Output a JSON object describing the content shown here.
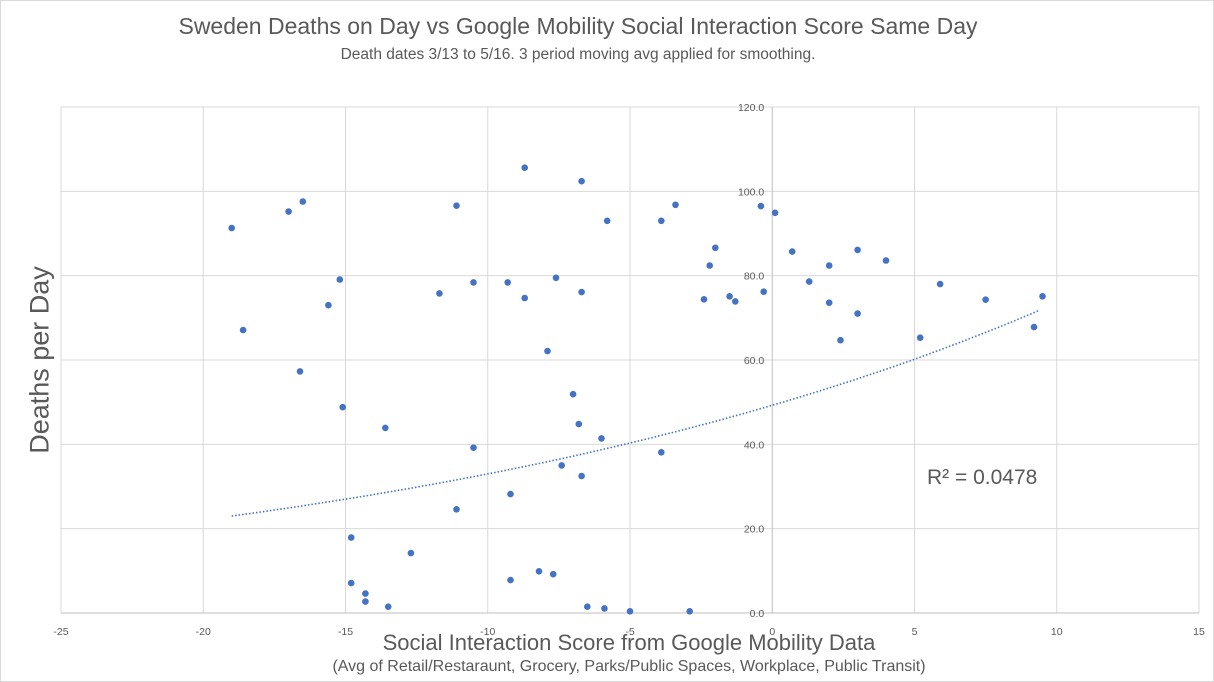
{
  "chart_data": {
    "type": "scatter",
    "title": "Sweden Deaths on Day vs Google Mobility Social Interaction Score Same Day",
    "subtitle": "Death dates 3/13 to 5/16.  3 period moving avg applied for smoothing.",
    "xlabel": "Social Interaction Score from Google Mobility Data",
    "xlabel_note": "(Avg of Retail/Restaraunt, Grocery, Parks/Public Spaces, Workplace, Public Transit)",
    "ylabel": "Deaths per Day",
    "xlim": [
      -25,
      15
    ],
    "ylim": [
      0,
      120
    ],
    "x_ticks": [
      "-25",
      "-20",
      "-15",
      "-10",
      "-5",
      "0",
      "5",
      "10",
      "15"
    ],
    "y_ticks": [
      "0.0",
      "20.0",
      "40.0",
      "60.0",
      "80.0",
      "100.0",
      "120.0"
    ],
    "grid": true,
    "marker_color": "#4472c4",
    "trendline": {
      "type": "exponential",
      "label": "R² = 0.0478",
      "x_range": [
        -19,
        9.4
      ],
      "start_value": 23.0,
      "end_value": 71.8
    },
    "points": [
      {
        "x": -19.0,
        "y": 91.3
      },
      {
        "x": -18.6,
        "y": 67.1
      },
      {
        "x": -17.0,
        "y": 95.2
      },
      {
        "x": -16.5,
        "y": 97.6
      },
      {
        "x": -16.6,
        "y": 57.3
      },
      {
        "x": -15.6,
        "y": 73.0
      },
      {
        "x": -15.2,
        "y": 79.1
      },
      {
        "x": -15.1,
        "y": 48.8
      },
      {
        "x": -14.8,
        "y": 17.9
      },
      {
        "x": -14.8,
        "y": 7.1
      },
      {
        "x": -14.3,
        "y": 4.6
      },
      {
        "x": -14.3,
        "y": 2.7
      },
      {
        "x": -13.6,
        "y": 43.9
      },
      {
        "x": -13.5,
        "y": 1.5
      },
      {
        "x": -12.7,
        "y": 14.2
      },
      {
        "x": -11.7,
        "y": 75.8
      },
      {
        "x": -11.1,
        "y": 96.6
      },
      {
        "x": -11.1,
        "y": 24.6
      },
      {
        "x": -10.5,
        "y": 78.4
      },
      {
        "x": -10.5,
        "y": 39.2
      },
      {
        "x": -9.3,
        "y": 78.4
      },
      {
        "x": -9.2,
        "y": 28.2
      },
      {
        "x": -9.2,
        "y": 7.8
      },
      {
        "x": -8.7,
        "y": 105.6
      },
      {
        "x": -8.7,
        "y": 74.7
      },
      {
        "x": -8.2,
        "y": 9.9
      },
      {
        "x": -7.9,
        "y": 62.1
      },
      {
        "x": -7.7,
        "y": 9.2
      },
      {
        "x": -7.6,
        "y": 79.5
      },
      {
        "x": -7.4,
        "y": 35.0
      },
      {
        "x": -7.0,
        "y": 51.9
      },
      {
        "x": -6.8,
        "y": 44.8
      },
      {
        "x": -6.7,
        "y": 102.4
      },
      {
        "x": -6.7,
        "y": 76.1
      },
      {
        "x": -6.7,
        "y": 32.5
      },
      {
        "x": -6.5,
        "y": 1.5
      },
      {
        "x": -6.0,
        "y": 41.4
      },
      {
        "x": -5.8,
        "y": 93.0
      },
      {
        "x": -5.9,
        "y": 1.1
      },
      {
        "x": -5.0,
        "y": 0.4
      },
      {
        "x": -3.9,
        "y": 93.0
      },
      {
        "x": -3.9,
        "y": 38.1
      },
      {
        "x": -3.4,
        "y": 96.8
      },
      {
        "x": -2.9,
        "y": 0.4
      },
      {
        "x": -2.4,
        "y": 74.4
      },
      {
        "x": -2.2,
        "y": 82.4
      },
      {
        "x": -2.0,
        "y": 86.6
      },
      {
        "x": -1.5,
        "y": 75.1
      },
      {
        "x": -1.3,
        "y": 73.9
      },
      {
        "x": -0.4,
        "y": 96.5
      },
      {
        "x": -0.3,
        "y": 76.2
      },
      {
        "x": 0.1,
        "y": 94.9
      },
      {
        "x": 0.7,
        "y": 85.7
      },
      {
        "x": 1.3,
        "y": 78.6
      },
      {
        "x": 2.0,
        "y": 82.4
      },
      {
        "x": 2.0,
        "y": 73.6
      },
      {
        "x": 2.4,
        "y": 64.7
      },
      {
        "x": 3.0,
        "y": 71.0
      },
      {
        "x": 3.0,
        "y": 86.1
      },
      {
        "x": 4.0,
        "y": 83.6
      },
      {
        "x": 5.2,
        "y": 65.3
      },
      {
        "x": 5.9,
        "y": 78.0
      },
      {
        "x": 7.5,
        "y": 74.3
      },
      {
        "x": 9.2,
        "y": 67.8
      },
      {
        "x": 9.5,
        "y": 75.1
      }
    ]
  }
}
